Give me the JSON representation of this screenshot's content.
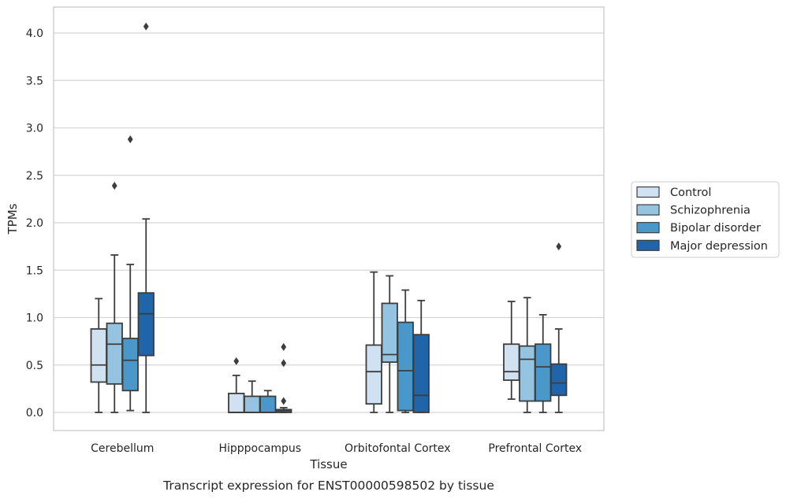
{
  "chart_data": {
    "type": "boxplot",
    "caption": "Transcript expression for ENST00000598502 by tissue",
    "xlabel": "Tissue",
    "ylabel": "TPMs",
    "ylim": [
      -0.19,
      4.28
    ],
    "yticks": [
      0.0,
      0.5,
      1.0,
      1.5,
      2.0,
      2.5,
      3.0,
      3.5,
      4.0
    ],
    "ytick_labels": [
      "0.0",
      "0.5",
      "1.0",
      "1.5",
      "2.0",
      "2.5",
      "3.0",
      "3.5",
      "4.0"
    ],
    "grid": true,
    "legend_position": "right",
    "categories": [
      "Cerebellum",
      "Hipppocampus",
      "Orbitofontal Cortex",
      "Prefrontal Cortex"
    ],
    "series": [
      {
        "name": "Control",
        "color": "#d0e1f2",
        "boxes": [
          {
            "whisker_low": 0.0,
            "q1": 0.32,
            "median": 0.5,
            "q3": 0.88,
            "whisker_high": 1.2,
            "outliers": []
          },
          {
            "whisker_low": 0.0,
            "q1": 0.0,
            "median": 0.0,
            "q3": 0.2,
            "whisker_high": 0.39,
            "outliers": [
              0.54
            ]
          },
          {
            "whisker_low": 0.0,
            "q1": 0.09,
            "median": 0.43,
            "q3": 0.71,
            "whisker_high": 1.48,
            "outliers": []
          },
          {
            "whisker_low": 0.14,
            "q1": 0.34,
            "median": 0.43,
            "q3": 0.72,
            "whisker_high": 1.17,
            "outliers": []
          }
        ]
      },
      {
        "name": "Schizophrenia",
        "color": "#94c4df",
        "boxes": [
          {
            "whisker_low": 0.0,
            "q1": 0.3,
            "median": 0.72,
            "q3": 0.94,
            "whisker_high": 1.66,
            "outliers": [
              2.39
            ]
          },
          {
            "whisker_low": 0.0,
            "q1": 0.0,
            "median": 0.0,
            "q3": 0.17,
            "whisker_high": 0.33,
            "outliers": []
          },
          {
            "whisker_low": 0.0,
            "q1": 0.53,
            "median": 0.61,
            "q3": 1.15,
            "whisker_high": 1.44,
            "outliers": []
          },
          {
            "whisker_low": 0.0,
            "q1": 0.12,
            "median": 0.56,
            "q3": 0.7,
            "whisker_high": 1.21,
            "outliers": []
          }
        ]
      },
      {
        "name": "Bipolar disorder",
        "color": "#4a98c9",
        "boxes": [
          {
            "whisker_low": 0.02,
            "q1": 0.23,
            "median": 0.55,
            "q3": 0.78,
            "whisker_high": 1.56,
            "outliers": [
              2.88
            ]
          },
          {
            "whisker_low": 0.0,
            "q1": 0.0,
            "median": 0.0,
            "q3": 0.17,
            "whisker_high": 0.23,
            "outliers": []
          },
          {
            "whisker_low": 0.0,
            "q1": 0.02,
            "median": 0.44,
            "q3": 0.95,
            "whisker_high": 1.29,
            "outliers": []
          },
          {
            "whisker_low": 0.0,
            "q1": 0.12,
            "median": 0.48,
            "q3": 0.72,
            "whisker_high": 1.03,
            "outliers": []
          }
        ]
      },
      {
        "name": "Major depression",
        "color": "#2064aa",
        "boxes": [
          {
            "whisker_low": 0.0,
            "q1": 0.6,
            "median": 1.04,
            "q3": 1.26,
            "whisker_high": 2.04,
            "outliers": [
              4.07
            ]
          },
          {
            "whisker_low": 0.0,
            "q1": 0.0,
            "median": 0.02,
            "q3": 0.03,
            "whisker_high": 0.05,
            "outliers": [
              0.69,
              0.52,
              0.12
            ]
          },
          {
            "whisker_low": 0.0,
            "q1": 0.0,
            "median": 0.18,
            "q3": 0.82,
            "whisker_high": 1.18,
            "outliers": []
          },
          {
            "whisker_low": 0.0,
            "q1": 0.18,
            "median": 0.31,
            "q3": 0.51,
            "whisker_high": 0.88,
            "outliers": [
              1.75
            ]
          }
        ]
      }
    ]
  }
}
